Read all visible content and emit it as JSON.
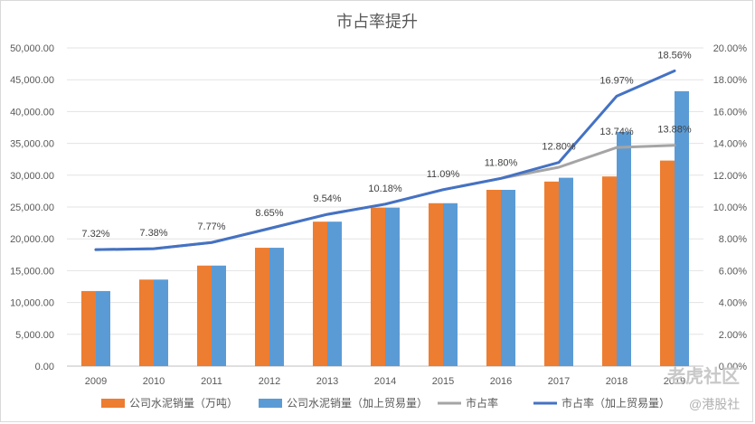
{
  "chart_data": {
    "type": "bar",
    "title": "市占率提升",
    "categories": [
      "2009",
      "2010",
      "2011",
      "2012",
      "2013",
      "2014",
      "2015",
      "2016",
      "2017",
      "2018",
      "2019"
    ],
    "y_left": {
      "ticks": [
        "0.00",
        "5,000.00",
        "10,000.00",
        "15,000.00",
        "20,000.00",
        "25,000.00",
        "30,000.00",
        "35,000.00",
        "40,000.00",
        "45,000.00",
        "50,000.00"
      ],
      "range": [
        0,
        50000
      ]
    },
    "y_right": {
      "ticks": [
        "0.00%",
        "2.00%",
        "4.00%",
        "6.00%",
        "8.00%",
        "10.00%",
        "12.00%",
        "14.00%",
        "16.00%",
        "18.00%",
        "20.00%"
      ],
      "range": [
        0,
        20
      ]
    },
    "series": [
      {
        "name": "公司水泥销量（万吨）",
        "kind": "bar",
        "color": "#ed7d31",
        "values": [
          11800,
          13600,
          15800,
          18600,
          22700,
          24900,
          25600,
          27700,
          29000,
          29800,
          32300
        ]
      },
      {
        "name": "公司水泥销量（加上贸易量）",
        "kind": "bar",
        "color": "#5b9bd5",
        "values": [
          11800,
          13600,
          15800,
          18600,
          22700,
          24900,
          25600,
          27700,
          29600,
          36800,
          43200
        ]
      },
      {
        "name": "市占率",
        "kind": "line",
        "axis": "right",
        "color": "#a5a5a5",
        "values": [
          7.32,
          7.38,
          7.77,
          8.65,
          9.54,
          10.18,
          11.09,
          11.8,
          12.5,
          13.74,
          13.88
        ]
      },
      {
        "name": "市占率（加上贸易量）",
        "kind": "line",
        "axis": "right",
        "color": "#4472c4",
        "values": [
          7.32,
          7.38,
          7.77,
          8.65,
          9.54,
          10.18,
          11.09,
          11.8,
          12.8,
          16.97,
          18.56
        ]
      }
    ],
    "data_labels": [
      {
        "text": "7.32%",
        "x": "2009",
        "y": 7.32
      },
      {
        "text": "7.38%",
        "x": "2010",
        "y": 7.38
      },
      {
        "text": "7.77%",
        "x": "2011",
        "y": 7.77
      },
      {
        "text": "8.65%",
        "x": "2012",
        "y": 8.65
      },
      {
        "text": "9.54%",
        "x": "2013",
        "y": 9.54
      },
      {
        "text": "10.18%",
        "x": "2014",
        "y": 10.18
      },
      {
        "text": "11.09%",
        "x": "2015",
        "y": 11.09
      },
      {
        "text": "11.80%",
        "x": "2016",
        "y": 11.8
      },
      {
        "text": "12.80%",
        "x": "2017",
        "y": 12.8
      },
      {
        "text": "16.97%",
        "x": "2018",
        "y": 16.97
      },
      {
        "text": "13.74%",
        "x": "2018",
        "y": 13.74
      },
      {
        "text": "18.56%",
        "x": "2019",
        "y": 18.56
      },
      {
        "text": "13.88%",
        "x": "2019",
        "y": 13.88
      }
    ],
    "grid": true,
    "legend_position": "bottom"
  },
  "watermark": {
    "line1": "老虎社区",
    "line2": "@港股社"
  }
}
